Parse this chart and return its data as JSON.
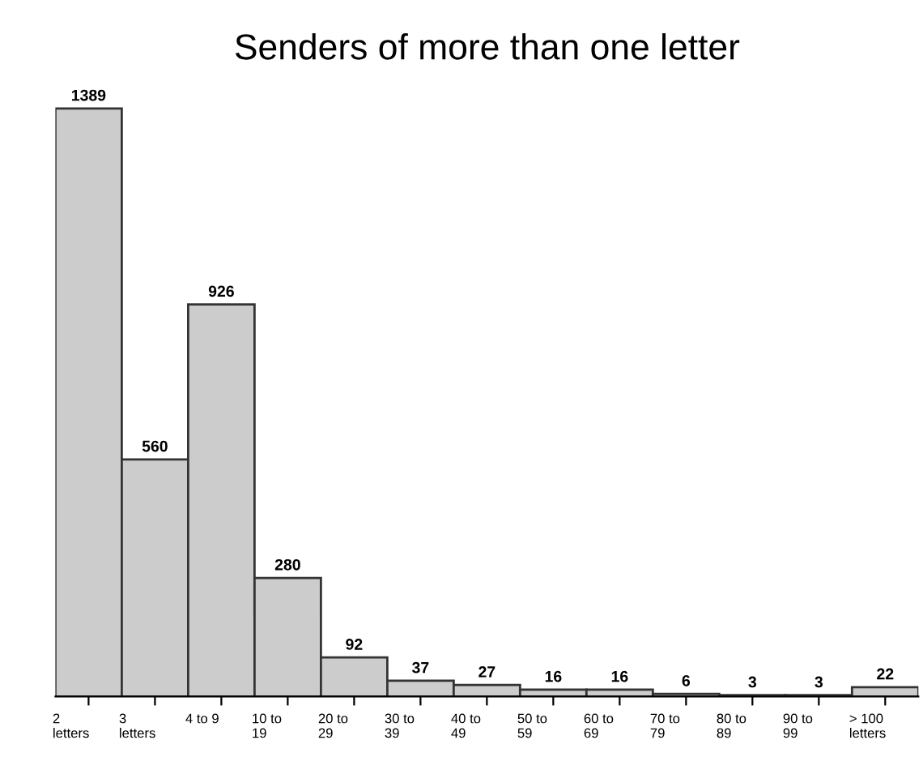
{
  "chart_data": {
    "type": "bar",
    "title": "Senders of more than one letter",
    "categories": [
      "2\nletters",
      "3\nletters",
      "4 to 9",
      "10 to\n19",
      "20 to\n29",
      "30 to\n39",
      "40 to\n49",
      "50 to\n59",
      "60 to\n69",
      "70 to\n79",
      "80 to\n89",
      "90 to\n99",
      "> 100\nletters"
    ],
    "values": [
      1389,
      560,
      926,
      280,
      92,
      37,
      27,
      16,
      16,
      6,
      3,
      3,
      22
    ],
    "color": "#cccccc",
    "data_labels": true,
    "grid": false,
    "legend": false
  }
}
